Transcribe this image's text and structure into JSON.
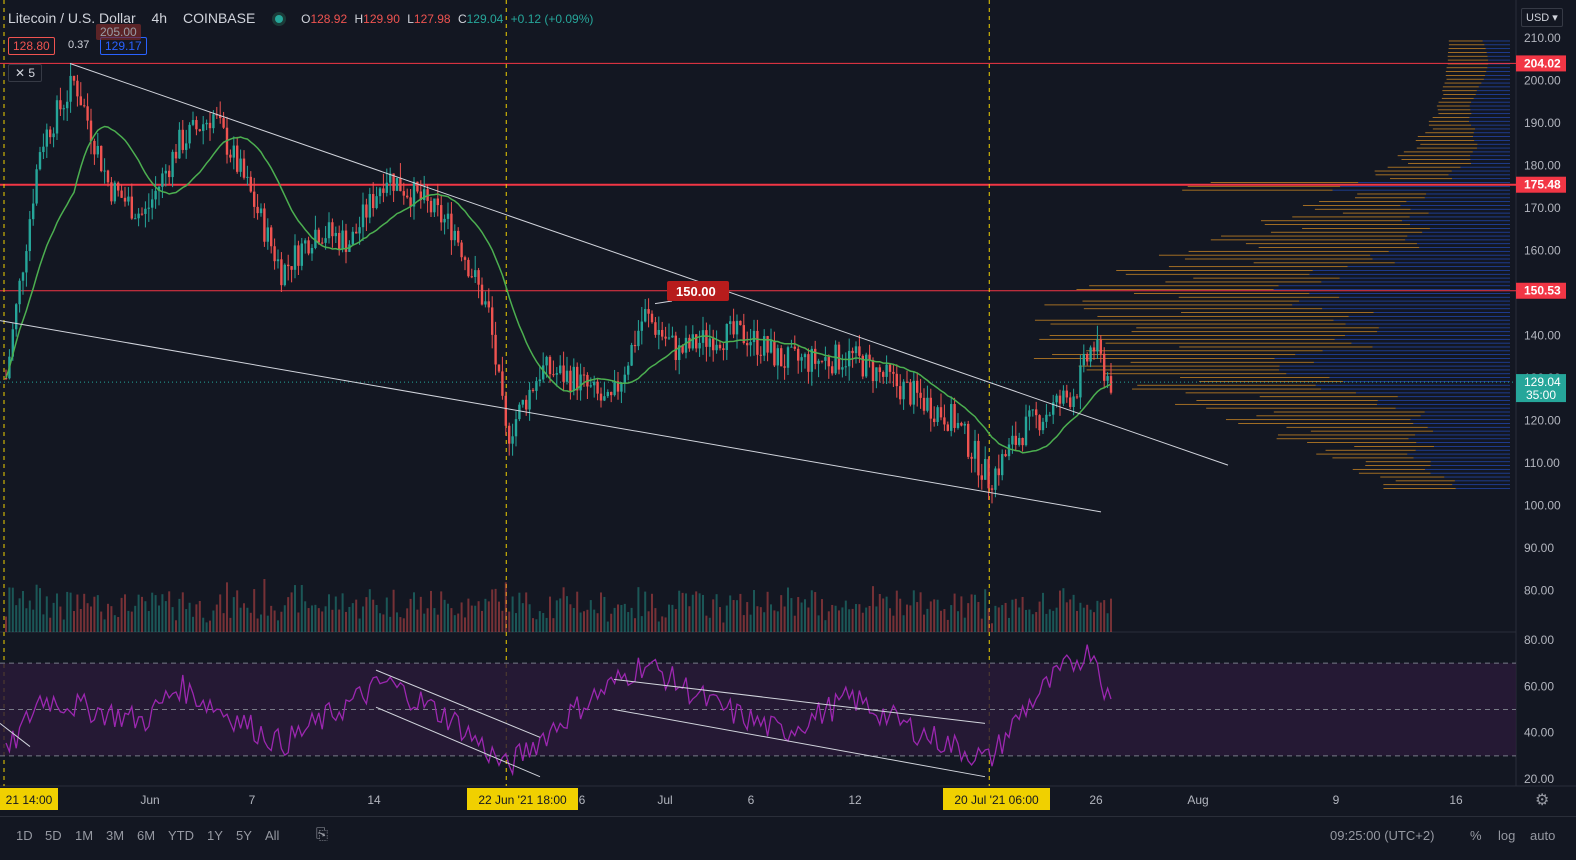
{
  "header": {
    "symbol": "Litecoin / U.S. Dollar",
    "interval": "4h",
    "exchange": "COINBASE",
    "o_label": "O",
    "o": "128.92",
    "h_label": "H",
    "h": "129.90",
    "l_label": "L",
    "l": "127.98",
    "c_label": "C",
    "c": "129.04",
    "change": "+0.12 (+0.09%)"
  },
  "order": {
    "sell": "128.80",
    "spread": "0.37",
    "buy": "129.17",
    "count": "5"
  },
  "currency": "USD",
  "colors": {
    "bg": "#131722",
    "up": "#26a69a",
    "down": "#ef5350",
    "ma": "#4caf50",
    "rsi": "#9c27b0",
    "red_line": "#f23645",
    "vp_up": "#2962ff",
    "vp_down": "#ffa726"
  },
  "chart_data": {
    "type": "candlestick",
    "symbol": "LTC/USD",
    "ylim": [
      75,
      215
    ],
    "y_ticks": [
      "210.00",
      "200.00",
      "190.00",
      "180.00",
      "170.00",
      "160.00",
      "150.00",
      "140.00",
      "130.00",
      "120.00",
      "110.00",
      "100.00",
      "90.00",
      "80.00"
    ],
    "x_ticks": [
      "Jun",
      "7",
      "14",
      "6",
      "Jul",
      "6",
      "12",
      "26",
      "Aug",
      "9",
      "16"
    ],
    "x_tick_labels_highlighted": [
      "21 14:00",
      "22 Jun '21   18:00",
      "20 Jul '21   06:00"
    ],
    "price_levels": [
      {
        "label": "204.02",
        "value": 204.02
      },
      {
        "label": "175.48",
        "value": 175.48
      },
      {
        "label": "150.53",
        "value": 150.53
      },
      {
        "label": "129.04",
        "value": 129.04
      }
    ],
    "current_price": "129.04",
    "countdown": "35:00",
    "hidden_label": "205.00",
    "annotation": {
      "label": "150.00",
      "value": 150.0
    },
    "price_path": [
      {
        "date": "2021-05-24",
        "close": 130
      },
      {
        "date": "2021-05-26",
        "close": 185
      },
      {
        "date": "2021-05-28",
        "close": 200
      },
      {
        "date": "2021-05-30",
        "close": 175
      },
      {
        "date": "2021-06-01",
        "close": 168
      },
      {
        "date": "2021-06-03",
        "close": 185
      },
      {
        "date": "2021-06-05",
        "close": 192
      },
      {
        "date": "2021-06-07",
        "close": 175
      },
      {
        "date": "2021-06-09",
        "close": 155
      },
      {
        "date": "2021-06-11",
        "close": 165
      },
      {
        "date": "2021-06-13",
        "close": 162
      },
      {
        "date": "2021-06-15",
        "close": 178
      },
      {
        "date": "2021-06-17",
        "close": 172
      },
      {
        "date": "2021-06-19",
        "close": 165
      },
      {
        "date": "2021-06-21",
        "close": 145
      },
      {
        "date": "2021-06-22",
        "close": 116
      },
      {
        "date": "2021-06-24",
        "close": 132
      },
      {
        "date": "2021-06-26",
        "close": 130
      },
      {
        "date": "2021-06-28",
        "close": 123
      },
      {
        "date": "2021-06-30",
        "close": 145
      },
      {
        "date": "2021-07-02",
        "close": 136
      },
      {
        "date": "2021-07-04",
        "close": 140
      },
      {
        "date": "2021-07-06",
        "close": 140
      },
      {
        "date": "2021-07-08",
        "close": 134
      },
      {
        "date": "2021-07-10",
        "close": 134
      },
      {
        "date": "2021-07-12",
        "close": 135
      },
      {
        "date": "2021-07-14",
        "close": 130
      },
      {
        "date": "2021-07-16",
        "close": 125
      },
      {
        "date": "2021-07-18",
        "close": 120
      },
      {
        "date": "2021-07-20",
        "close": 106
      },
      {
        "date": "2021-07-22",
        "close": 118
      },
      {
        "date": "2021-07-24",
        "close": 124
      },
      {
        "date": "2021-07-25",
        "close": 127
      },
      {
        "date": "2021-07-26",
        "close": 138
      },
      {
        "date": "2021-07-27",
        "close": 129
      }
    ],
    "rsi": {
      "ylim": [
        15,
        85
      ],
      "y_ticks": [
        "80.00",
        "60.00",
        "40.00",
        "20.00"
      ],
      "bands": [
        70,
        50,
        30
      ],
      "path": [
        {
          "date": "2021-05-24",
          "rsi": 30
        },
        {
          "date": "2021-05-26",
          "rsi": 55
        },
        {
          "date": "2021-06-01",
          "rsi": 45
        },
        {
          "date": "2021-06-03",
          "rsi": 60
        },
        {
          "date": "2021-06-09",
          "rsi": 35
        },
        {
          "date": "2021-06-15",
          "rsi": 62
        },
        {
          "date": "2021-06-19",
          "rsi": 45
        },
        {
          "date": "2021-06-22",
          "rsi": 25
        },
        {
          "date": "2021-06-26",
          "rsi": 50
        },
        {
          "date": "2021-06-30",
          "rsi": 70
        },
        {
          "date": "2021-07-04",
          "rsi": 52
        },
        {
          "date": "2021-07-08",
          "rsi": 40
        },
        {
          "date": "2021-07-12",
          "rsi": 55
        },
        {
          "date": "2021-07-16",
          "rsi": 40
        },
        {
          "date": "2021-07-20",
          "rsi": 28
        },
        {
          "date": "2021-07-22",
          "rsi": 50
        },
        {
          "date": "2021-07-24",
          "rsi": 65
        },
        {
          "date": "2021-07-26",
          "rsi": 77
        },
        {
          "date": "2021-07-27",
          "rsi": 52
        }
      ]
    }
  },
  "bottom": {
    "ranges": [
      "1D",
      "5D",
      "1M",
      "3M",
      "6M",
      "YTD",
      "1Y",
      "5Y",
      "All"
    ],
    "time": "09:25:00 (UTC+2)",
    "percent": "%",
    "log": "log",
    "auto": "auto"
  }
}
